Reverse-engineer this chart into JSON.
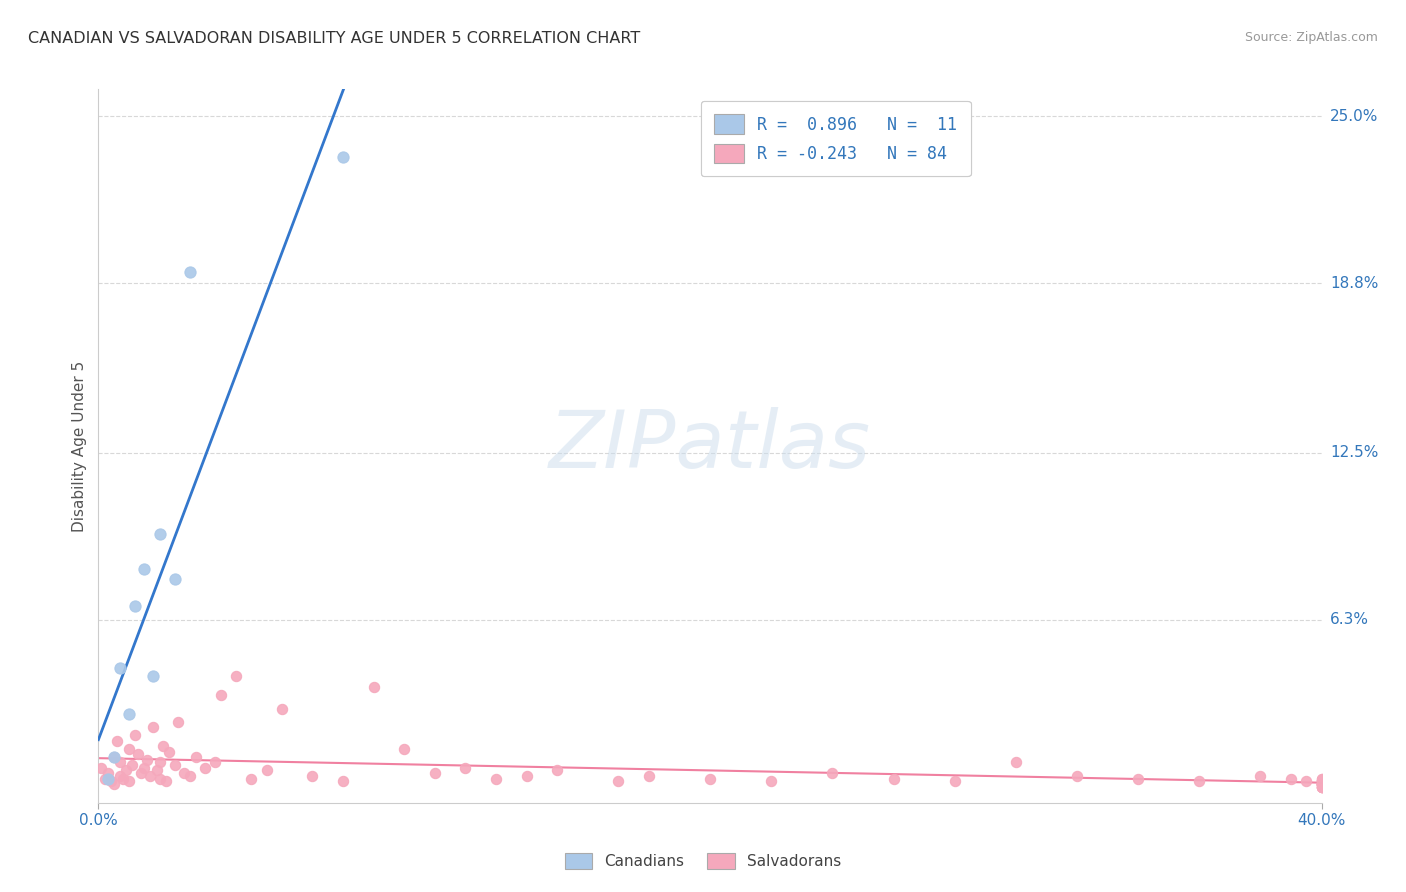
{
  "title": "CANADIAN VS SALVADORAN DISABILITY AGE UNDER 5 CORRELATION CHART",
  "source": "Source: ZipAtlas.com",
  "ylabel_label": "Disability Age Under 5",
  "ytick_labels": [
    "6.3%",
    "12.5%",
    "18.8%",
    "25.0%"
  ],
  "ytick_values": [
    6.3,
    12.5,
    18.8,
    25.0
  ],
  "xlim": [
    0,
    40.0
  ],
  "ylim": [
    -0.5,
    26.0
  ],
  "watermark_zip": "ZIP",
  "watermark_atlas": "atlas",
  "legend_r_canadian": "R =  0.896",
  "legend_n_canadian": "N =  11",
  "legend_r_salvadoran": "R = -0.243",
  "legend_n_salvadoran": "N = 84",
  "canadian_color": "#aac8e8",
  "salvadoran_color": "#f5a8bc",
  "trendline_canadian_color": "#3377cc",
  "trendline_salvadoran_color": "#f080a0",
  "background_color": "#ffffff",
  "grid_color": "#d8d8d8",
  "canadians_x": [
    0.3,
    0.5,
    0.7,
    1.0,
    1.2,
    1.5,
    1.8,
    2.0,
    2.5,
    3.0,
    8.0
  ],
  "canadians_y": [
    0.4,
    1.2,
    4.5,
    2.8,
    6.8,
    8.2,
    4.2,
    9.5,
    7.8,
    19.2,
    23.5
  ],
  "salvadorans_x": [
    0.1,
    0.2,
    0.3,
    0.4,
    0.5,
    0.5,
    0.6,
    0.7,
    0.7,
    0.8,
    0.9,
    1.0,
    1.0,
    1.1,
    1.2,
    1.3,
    1.4,
    1.5,
    1.6,
    1.7,
    1.8,
    1.9,
    2.0,
    2.0,
    2.1,
    2.2,
    2.3,
    2.5,
    2.6,
    2.8,
    3.0,
    3.2,
    3.5,
    3.8,
    4.0,
    4.5,
    5.0,
    5.5,
    6.0,
    7.0,
    8.0,
    9.0,
    10.0,
    11.0,
    12.0,
    13.0,
    14.0,
    15.0,
    17.0,
    18.0,
    20.0,
    22.0,
    24.0,
    26.0,
    28.0,
    30.0,
    32.0,
    34.0,
    36.0,
    38.0,
    39.0,
    39.5,
    40.0,
    40.0,
    40.0,
    40.0,
    40.0,
    40.0,
    40.0,
    40.0,
    40.0,
    40.0,
    40.0,
    40.0,
    40.0,
    40.0,
    40.0,
    40.0,
    40.0,
    40.0,
    40.0,
    40.0,
    40.0,
    40.0
  ],
  "salvadorans_y": [
    0.8,
    0.4,
    0.6,
    0.3,
    1.2,
    0.2,
    1.8,
    0.5,
    1.0,
    0.4,
    0.7,
    1.5,
    0.3,
    0.9,
    2.0,
    1.3,
    0.6,
    0.8,
    1.1,
    0.5,
    2.3,
    0.7,
    1.0,
    0.4,
    1.6,
    0.3,
    1.4,
    0.9,
    2.5,
    0.6,
    0.5,
    1.2,
    0.8,
    1.0,
    3.5,
    4.2,
    0.4,
    0.7,
    3.0,
    0.5,
    0.3,
    3.8,
    1.5,
    0.6,
    0.8,
    0.4,
    0.5,
    0.7,
    0.3,
    0.5,
    0.4,
    0.3,
    0.6,
    0.4,
    0.3,
    1.0,
    0.5,
    0.4,
    0.3,
    0.5,
    0.4,
    0.3,
    0.2,
    0.3,
    0.4,
    0.2,
    0.3,
    0.4,
    0.2,
    0.3,
    0.2,
    0.3,
    0.2,
    0.1,
    0.2,
    0.3,
    0.1,
    0.2,
    0.1,
    0.2,
    0.1,
    0.2,
    0.1,
    0.2
  ]
}
